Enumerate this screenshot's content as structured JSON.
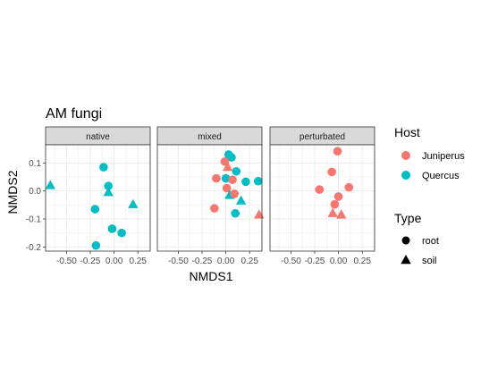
{
  "chart_data": {
    "type": "scatter",
    "title": "AM fungi",
    "xlabel": "NMDS1",
    "ylabel": "NMDS2",
    "xlim": [
      -0.72,
      0.38
    ],
    "ylim": [
      -0.215,
      0.165
    ],
    "x_ticks": [
      -0.5,
      -0.25,
      0.0,
      0.25
    ],
    "x_tick_labels": [
      "-0.50",
      "-0.25",
      "0.00",
      "0.25"
    ],
    "y_ticks": [
      -0.2,
      -0.1,
      0.0,
      0.1
    ],
    "y_tick_labels": [
      "-0.2",
      "-0.1",
      "0.0",
      "0.1"
    ],
    "grid": true,
    "facets": [
      "native",
      "mixed",
      "perturbated"
    ],
    "legend": {
      "position": "right",
      "host_title": "Host",
      "host": [
        {
          "label": "Juniperus",
          "color": "#F8766D"
        },
        {
          "label": "Quercus",
          "color": "#00BFC4"
        }
      ],
      "type_title": "Type",
      "type": [
        {
          "label": "root",
          "shape": "circle"
        },
        {
          "label": "soil",
          "shape": "triangle"
        }
      ]
    },
    "points": [
      {
        "facet": "native",
        "x": -0.67,
        "y": 0.02,
        "host": "Quercus",
        "type": "soil"
      },
      {
        "facet": "native",
        "x": -0.11,
        "y": 0.085,
        "host": "Quercus",
        "type": "root"
      },
      {
        "facet": "native",
        "x": -0.06,
        "y": 0.018,
        "host": "Quercus",
        "type": "root"
      },
      {
        "facet": "native",
        "x": -0.06,
        "y": -0.005,
        "host": "Quercus",
        "type": "soil"
      },
      {
        "facet": "native",
        "x": 0.2,
        "y": -0.048,
        "host": "Quercus",
        "type": "soil"
      },
      {
        "facet": "native",
        "x": -0.2,
        "y": -0.065,
        "host": "Quercus",
        "type": "root"
      },
      {
        "facet": "native",
        "x": -0.02,
        "y": -0.135,
        "host": "Quercus",
        "type": "root"
      },
      {
        "facet": "native",
        "x": 0.08,
        "y": -0.15,
        "host": "Quercus",
        "type": "root"
      },
      {
        "facet": "native",
        "x": -0.19,
        "y": -0.195,
        "host": "Quercus",
        "type": "root"
      },
      {
        "facet": "mixed",
        "x": 0.03,
        "y": 0.13,
        "host": "Quercus",
        "type": "root"
      },
      {
        "facet": "mixed",
        "x": 0.06,
        "y": 0.12,
        "host": "Quercus",
        "type": "root"
      },
      {
        "facet": "mixed",
        "x": -0.01,
        "y": 0.105,
        "host": "Juniperus",
        "type": "root"
      },
      {
        "facet": "mixed",
        "x": 0.02,
        "y": 0.085,
        "host": "Juniperus",
        "type": "soil"
      },
      {
        "facet": "mixed",
        "x": 0.11,
        "y": 0.07,
        "host": "Quercus",
        "type": "root"
      },
      {
        "facet": "mixed",
        "x": -0.1,
        "y": 0.045,
        "host": "Juniperus",
        "type": "root"
      },
      {
        "facet": "mixed",
        "x": 0.0,
        "y": 0.045,
        "host": "Quercus",
        "type": "root"
      },
      {
        "facet": "mixed",
        "x": 0.07,
        "y": 0.04,
        "host": "Juniperus",
        "type": "root"
      },
      {
        "facet": "mixed",
        "x": 0.21,
        "y": 0.033,
        "host": "Quercus",
        "type": "root"
      },
      {
        "facet": "mixed",
        "x": 0.34,
        "y": 0.035,
        "host": "Quercus",
        "type": "root"
      },
      {
        "facet": "mixed",
        "x": 0.01,
        "y": 0.01,
        "host": "Juniperus",
        "type": "root"
      },
      {
        "facet": "mixed",
        "x": 0.04,
        "y": -0.015,
        "host": "Quercus",
        "type": "soil"
      },
      {
        "facet": "mixed",
        "x": 0.09,
        "y": -0.01,
        "host": "Juniperus",
        "type": "root"
      },
      {
        "facet": "mixed",
        "x": 0.16,
        "y": -0.035,
        "host": "Quercus",
        "type": "soil"
      },
      {
        "facet": "mixed",
        "x": -0.12,
        "y": -0.062,
        "host": "Juniperus",
        "type": "root"
      },
      {
        "facet": "mixed",
        "x": 0.1,
        "y": -0.08,
        "host": "Quercus",
        "type": "root"
      },
      {
        "facet": "mixed",
        "x": 0.35,
        "y": -0.085,
        "host": "Juniperus",
        "type": "soil"
      },
      {
        "facet": "perturbated",
        "x": -0.01,
        "y": 0.142,
        "host": "Juniperus",
        "type": "root"
      },
      {
        "facet": "perturbated",
        "x": -0.07,
        "y": 0.068,
        "host": "Juniperus",
        "type": "root"
      },
      {
        "facet": "perturbated",
        "x": -0.2,
        "y": 0.005,
        "host": "Juniperus",
        "type": "root"
      },
      {
        "facet": "perturbated",
        "x": 0.11,
        "y": 0.013,
        "host": "Juniperus",
        "type": "root"
      },
      {
        "facet": "perturbated",
        "x": 0.0,
        "y": -0.02,
        "host": "Juniperus",
        "type": "root"
      },
      {
        "facet": "perturbated",
        "x": -0.04,
        "y": -0.048,
        "host": "Juniperus",
        "type": "root"
      },
      {
        "facet": "perturbated",
        "x": -0.06,
        "y": -0.08,
        "host": "Juniperus",
        "type": "soil"
      },
      {
        "facet": "perturbated",
        "x": 0.03,
        "y": -0.085,
        "host": "Juniperus",
        "type": "soil"
      }
    ]
  }
}
